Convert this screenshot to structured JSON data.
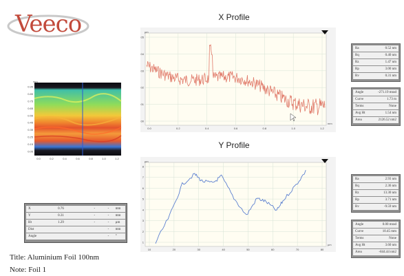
{
  "logo": {
    "text": "Veeco"
  },
  "x_profile": {
    "title": "X Profile",
    "y_unit": "µm",
    "x_unit": "mm",
    "y_ticks": [
      "0.05",
      "0.04",
      "0.03",
      "0.02",
      "0.01",
      "0.00"
    ],
    "x_ticks": [
      "0.0",
      "0.2",
      "0.4",
      "0.6",
      "0.8",
      "1.0",
      "1.2"
    ],
    "line_color": "#e07a6a"
  },
  "y_profile": {
    "title": "Y Profile",
    "y_unit": "µm",
    "x_unit": "µm",
    "y_ticks": [
      "8",
      "7",
      "6",
      "5",
      "4",
      "3",
      "2",
      "1"
    ],
    "x_ticks": [
      "10",
      "20",
      "30",
      "40",
      "50",
      "60",
      "70",
      "80"
    ],
    "line_color": "#5b7fd0"
  },
  "heatmap": {
    "y_unit": "mm",
    "y_ticks": [
      "0.95",
      "0.85",
      "0.75",
      "0.65",
      "0.55",
      "0.45",
      "0.35",
      "0.25",
      "0.15",
      "0.05"
    ],
    "x_ticks": [
      "0.0",
      "0.2",
      "0.4",
      "0.6",
      "0.8",
      "1.0",
      "1.2"
    ]
  },
  "x_stats": {
    "rows": [
      {
        "k": "Ra",
        "v": "0.52 nm"
      },
      {
        "k": "Rq",
        "v": "0.40 nm"
      },
      {
        "k": "Rz",
        "v": "1.47 nm"
      },
      {
        "k": "Rp",
        "v": "3.00 nm"
      },
      {
        "k": "Rv",
        "v": "0.31 nm"
      }
    ]
  },
  "x_extra": {
    "rows": [
      {
        "k": "Angle",
        "v": "-271.19 mrad"
      },
      {
        "k": "Curve",
        "v": "1.73 m"
      },
      {
        "k": "Terms",
        "v": "None"
      },
      {
        "k": "Avg Ht",
        "v": "1.54 nm"
      },
      {
        "k": "Area",
        "v": "2126.52 nm2"
      }
    ]
  },
  "y_stats": {
    "rows": [
      {
        "k": "Ra",
        "v": "2.93 nm"
      },
      {
        "k": "Rq",
        "v": "2.36 nm"
      },
      {
        "k": "Rz",
        "v": "13.30 nm"
      },
      {
        "k": "Rp",
        "v": "3.71 nm"
      },
      {
        "k": "Rv",
        "v": "-9.59 nm"
      }
    ]
  },
  "y_extra": {
    "rows": [
      {
        "k": "Angle",
        "v": "0.00 mrad"
      },
      {
        "k": "Curve",
        "v": "10.45 mm"
      },
      {
        "k": "Terms",
        "v": "None"
      },
      {
        "k": "Avg Ht",
        "v": "3.60 nm"
      },
      {
        "k": "Area",
        "v": "-844.44 nm2"
      }
    ]
  },
  "xyz": {
    "rows": [
      {
        "c1": "X",
        "c2": "0.76",
        "c3": "-",
        "c4": "-",
        "c5": "mm"
      },
      {
        "c1": "Y",
        "c2": "0.31",
        "c3": "-",
        "c4": "-",
        "c5": "mm"
      },
      {
        "c1": "Ht",
        "c2": "1.29",
        "c3": "-",
        "c4": "-",
        "c5": "µm"
      },
      {
        "c1": "Dist",
        "c2": "",
        "c3": "",
        "c4": "-",
        "c5": "mm"
      },
      {
        "c1": "Angle",
        "c2": "",
        "c3": "",
        "c4": "-",
        "c5": "°"
      }
    ]
  },
  "notes": {
    "title": "Title: Aluminium Foil 100nm",
    "note": "Note: Foil 1"
  }
}
